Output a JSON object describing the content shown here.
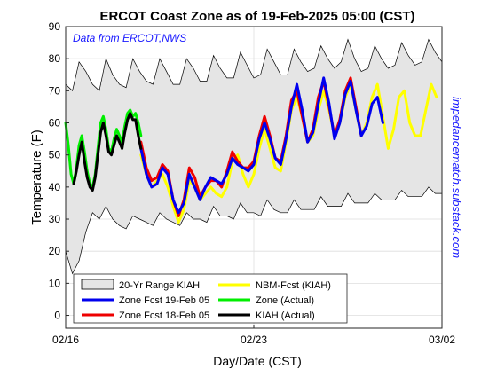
{
  "chart_data": {
    "type": "line",
    "title": "ERCOT Coast Zone as of 19-Feb-2025 05:00 (CST)",
    "source_note": "Data from ERCOT,NWS",
    "side_note": "impedancematch.substack.com",
    "xlabel": "Day/Date (CST)",
    "ylabel": "Temperature (F)",
    "xlim": [
      0,
      14
    ],
    "ylim": [
      -4,
      90
    ],
    "x_ticks": [
      {
        "value": 0,
        "label": "02/16"
      },
      {
        "value": 7,
        "label": "02/23"
      },
      {
        "value": 14,
        "label": "03/02"
      }
    ],
    "y_ticks": [
      0,
      10,
      20,
      30,
      40,
      50,
      60,
      70,
      80,
      90
    ],
    "grid": true,
    "legend_position": "bottom-left",
    "range": {
      "name": "20-Yr Range KIAH",
      "color": "#e5e5e5",
      "x": [
        0,
        0.25,
        0.5,
        0.75,
        1.0,
        1.25,
        1.5,
        1.75,
        2.0,
        2.25,
        2.5,
        2.75,
        3.0,
        3.25,
        3.5,
        3.75,
        4.0,
        4.25,
        4.5,
        4.75,
        5.0,
        5.25,
        5.5,
        5.75,
        6.0,
        6.25,
        6.5,
        6.75,
        7.0,
        7.25,
        7.5,
        7.75,
        8.0,
        8.25,
        8.5,
        8.75,
        9.0,
        9.25,
        9.5,
        9.75,
        10.0,
        10.25,
        10.5,
        10.75,
        11.0,
        11.25,
        11.5,
        11.75,
        12.0,
        12.25,
        12.5,
        12.75,
        13.0,
        13.25,
        13.5,
        13.75,
        14.0
      ],
      "upper": [
        72,
        70,
        79,
        76,
        72,
        70,
        80,
        75,
        72,
        71,
        80,
        76,
        73,
        72,
        80,
        76,
        72,
        72,
        80,
        77,
        73,
        73,
        81,
        77,
        74,
        74,
        82,
        78,
        74,
        75,
        83,
        79,
        75,
        75,
        83,
        79,
        76,
        77,
        84,
        80,
        77,
        79,
        86,
        80,
        76,
        77,
        84,
        80,
        77,
        78,
        85,
        81,
        78,
        79,
        86,
        82,
        79
      ],
      "lower": [
        20,
        13,
        17,
        26,
        32,
        30,
        34,
        30,
        28,
        27,
        31,
        30,
        29,
        28,
        32,
        30,
        29,
        28,
        32,
        30,
        30,
        29,
        34,
        31,
        31,
        30,
        35,
        32,
        32,
        31,
        36,
        33,
        32,
        32,
        36,
        33,
        33,
        33,
        37,
        34,
        34,
        34,
        38,
        35,
        35,
        35,
        38,
        36,
        36,
        36,
        39,
        37,
        37,
        37,
        40,
        38,
        38
      ]
    },
    "series": [
      {
        "name": "Zone Fcst 19-Feb 05",
        "color": "#0000ee",
        "x": [
          2.8,
          3.0,
          3.2,
          3.4,
          3.6,
          3.8,
          4.0,
          4.2,
          4.4,
          4.6,
          4.8,
          5.0,
          5.2,
          5.4,
          5.6,
          5.8,
          6.0,
          6.2,
          6.4,
          6.6,
          6.8,
          7.0,
          7.2,
          7.4,
          7.6,
          7.8,
          8.0,
          8.2,
          8.4,
          8.6,
          8.8,
          9.0,
          9.2,
          9.4,
          9.6,
          9.8,
          10.0,
          10.2,
          10.4,
          10.6,
          10.8,
          11.0,
          11.2,
          11.4,
          11.6,
          11.8
        ],
        "y": [
          52,
          44,
          40,
          41,
          46,
          44,
          36,
          32,
          35,
          44,
          40,
          36,
          40,
          43,
          42,
          41,
          44,
          49,
          47,
          46,
          45,
          47,
          55,
          60,
          55,
          49,
          47,
          55,
          65,
          72,
          64,
          54,
          57,
          66,
          74,
          66,
          55,
          60,
          69,
          73,
          64,
          56,
          59,
          66,
          68,
          60
        ]
      },
      {
        "name": "Zone Fcst 18-Feb 05",
        "color": "#ee0000",
        "x": [
          2.8,
          3.0,
          3.2,
          3.4,
          3.6,
          3.8,
          4.0,
          4.2,
          4.4,
          4.6,
          4.8,
          5.0,
          5.2,
          5.4,
          5.6,
          5.8,
          6.0,
          6.2,
          6.4,
          6.6,
          6.8,
          7.0,
          7.2,
          7.4,
          7.6,
          7.8,
          8.0,
          8.2,
          8.4,
          8.6,
          8.8,
          9.0,
          9.2,
          9.4,
          9.6,
          9.8,
          10.0,
          10.2,
          10.4,
          10.6,
          10.8,
          11.0
        ],
        "y": [
          54,
          46,
          42,
          43,
          47,
          45,
          36,
          31,
          36,
          46,
          43,
          37,
          40,
          42,
          42,
          40,
          45,
          51,
          48,
          46,
          46,
          48,
          56,
          62,
          56,
          49,
          48,
          56,
          67,
          70,
          62,
          54,
          58,
          68,
          73,
          65,
          56,
          61,
          70,
          74,
          65,
          56
        ]
      },
      {
        "name": "NBM-Fcst (KIAH)",
        "color": "#ffff00",
        "x": [
          2.8,
          3.0,
          3.2,
          3.4,
          3.6,
          3.8,
          4.0,
          4.2,
          4.4,
          4.6,
          4.8,
          5.0,
          5.2,
          5.4,
          5.6,
          5.8,
          6.0,
          6.2,
          6.4,
          6.6,
          6.8,
          7.0,
          7.2,
          7.4,
          7.6,
          7.8,
          8.0,
          8.2,
          8.4,
          8.6,
          8.8,
          9.0,
          9.2,
          9.4,
          9.6,
          9.8,
          10.0,
          10.2,
          10.4,
          10.6,
          10.8,
          11.0,
          11.2,
          11.4,
          11.6,
          11.8,
          12.0,
          12.2,
          12.4,
          12.6,
          12.8,
          13.0,
          13.2,
          13.4,
          13.6,
          13.8
        ],
        "y": [
          50,
          44,
          40,
          42,
          44,
          40,
          34,
          29,
          33,
          42,
          40,
          36,
          38,
          40,
          38,
          37,
          40,
          48,
          50,
          44,
          40,
          44,
          52,
          58,
          52,
          46,
          45,
          54,
          64,
          68,
          62,
          54,
          56,
          64,
          70,
          64,
          56,
          60,
          68,
          72,
          64,
          56,
          60,
          68,
          72,
          62,
          52,
          58,
          68,
          70,
          60,
          56,
          56,
          64,
          72,
          68
        ]
      },
      {
        "name": "Zone (Actual)",
        "color": "#00ee00",
        "x": [
          0,
          0.1,
          0.2,
          0.3,
          0.4,
          0.5,
          0.6,
          0.7,
          0.8,
          0.9,
          1.0,
          1.1,
          1.2,
          1.3,
          1.4,
          1.5,
          1.6,
          1.7,
          1.8,
          1.9,
          2.0,
          2.1,
          2.2,
          2.3,
          2.4,
          2.5,
          2.6,
          2.7,
          2.8
        ],
        "y": [
          60,
          53,
          44,
          41,
          46,
          53,
          56,
          51,
          45,
          41,
          40,
          44,
          52,
          60,
          62,
          58,
          52,
          51,
          55,
          58,
          56,
          54,
          59,
          63,
          64,
          62,
          63,
          60,
          56
        ]
      },
      {
        "name": "KIAH (Actual)",
        "color": "#000000",
        "x": [
          0.3,
          0.4,
          0.5,
          0.6,
          0.7,
          0.8,
          0.9,
          1.0,
          1.1,
          1.2,
          1.3,
          1.4,
          1.5,
          1.6,
          1.7,
          1.8,
          1.9,
          2.0,
          2.1,
          2.2,
          2.3,
          2.4,
          2.5,
          2.6,
          2.7,
          2.8
        ],
        "y": [
          41,
          45,
          50,
          54,
          48,
          43,
          40,
          39,
          43,
          50,
          57,
          60,
          56,
          51,
          50,
          53,
          56,
          54,
          52,
          57,
          61,
          63,
          61,
          61,
          56,
          52
        ]
      }
    ],
    "legend": [
      {
        "label": "20-Yr Range KIAH",
        "kind": "patch",
        "color": "#e5e5e5"
      },
      {
        "label": "NBM-Fcst (KIAH)",
        "kind": "line",
        "color": "#ffff00"
      },
      {
        "label": "Zone Fcst 19-Feb 05",
        "kind": "line",
        "color": "#0000ee"
      },
      {
        "label": "Zone (Actual)",
        "kind": "line",
        "color": "#00ee00"
      },
      {
        "label": "Zone Fcst 18-Feb 05",
        "kind": "line",
        "color": "#ee0000"
      },
      {
        "label": "KIAH (Actual)",
        "kind": "line",
        "color": "#000000"
      }
    ]
  }
}
